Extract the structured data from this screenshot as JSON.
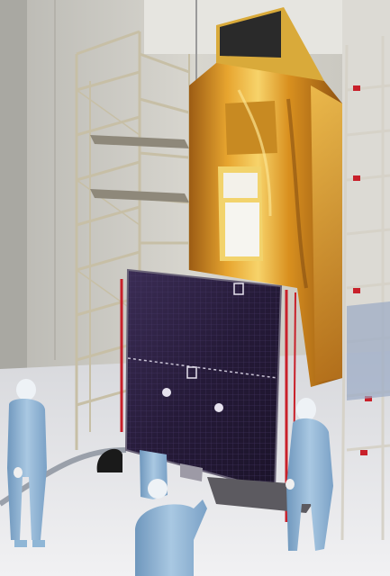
{
  "scene": {
    "subject": "spacecraft",
    "elements": [
      "cleanroom",
      "satellite-body-gold-mli",
      "solar-array-panel",
      "scaffold-towers",
      "technicians"
    ]
  },
  "colors": {
    "wall": "#cfcdc6",
    "floor": "#e6e6e8",
    "gold_foil": "#e0a02a",
    "gold_dark": "#a8681a",
    "solar_cell": "#2a1f3d",
    "scaffold": "#c8c2b0",
    "scaffold_red": "#c8202a",
    "bunny_suit": "#8fb6d6"
  }
}
